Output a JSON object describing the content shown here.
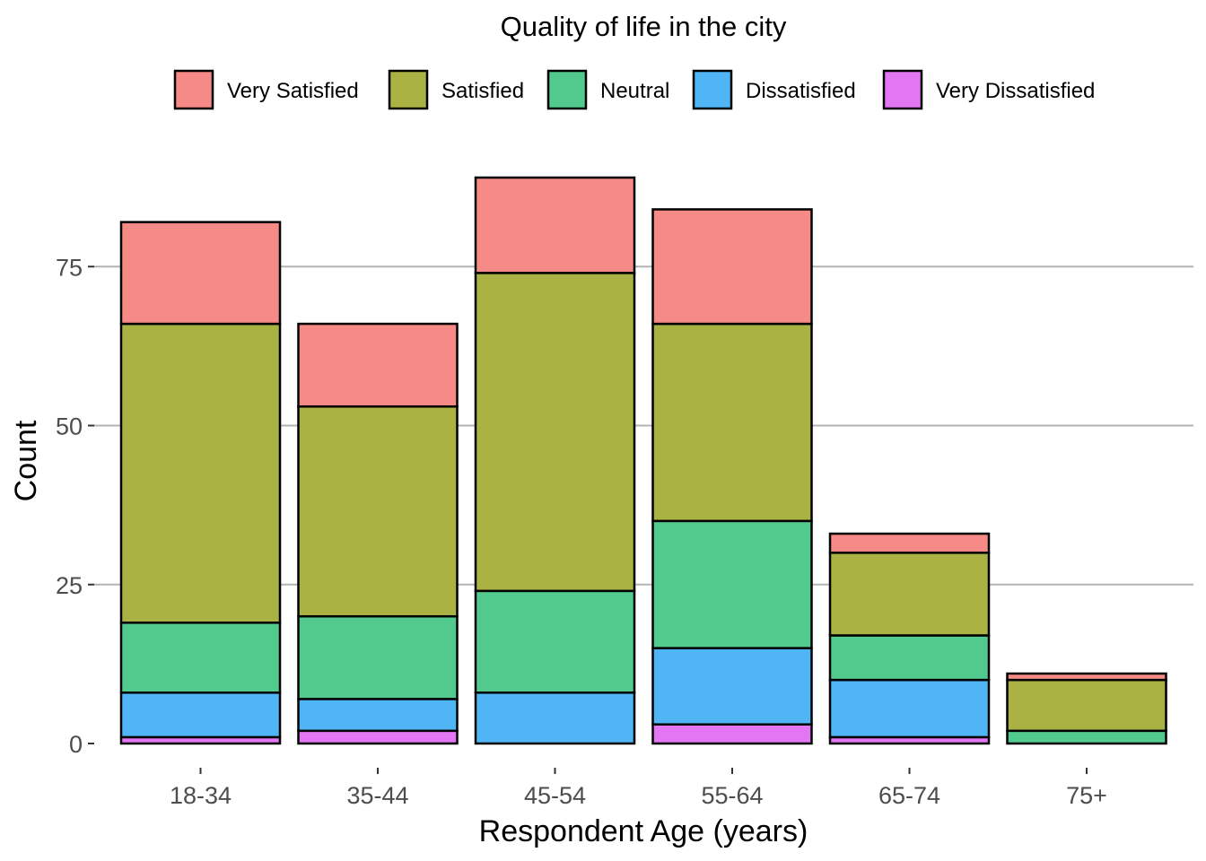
{
  "chart_data": {
    "type": "bar",
    "stacked": true,
    "title": "Quality of life in the city",
    "xlabel": "Respondent Age (years)",
    "ylabel": "Count",
    "categories": [
      "18-34",
      "35-44",
      "45-54",
      "55-64",
      "65-74",
      "75+"
    ],
    "ylim": [
      0,
      92
    ],
    "yticks": [
      0,
      25,
      50,
      75
    ],
    "grid": "horizontal major",
    "legend_position": "top",
    "series": [
      {
        "name": "Very Dissatisfied",
        "color": "#E377F3",
        "values": [
          1,
          2,
          0,
          3,
          1,
          0
        ]
      },
      {
        "name": "Dissatisfied",
        "color": "#4FB5F5",
        "values": [
          7,
          5,
          8,
          12,
          9,
          0
        ]
      },
      {
        "name": "Neutral",
        "color": "#52C98D",
        "values": [
          11,
          13,
          16,
          20,
          7,
          2
        ]
      },
      {
        "name": "Satisfied",
        "color": "#ABB244",
        "values": [
          47,
          33,
          50,
          31,
          13,
          8
        ]
      },
      {
        "name": "Very Satisfied",
        "color": "#F68A86",
        "values": [
          16,
          13,
          15,
          18,
          3,
          1
        ]
      }
    ],
    "legend_order": [
      "Very Satisfied",
      "Satisfied",
      "Neutral",
      "Dissatisfied",
      "Very Dissatisfied"
    ]
  }
}
